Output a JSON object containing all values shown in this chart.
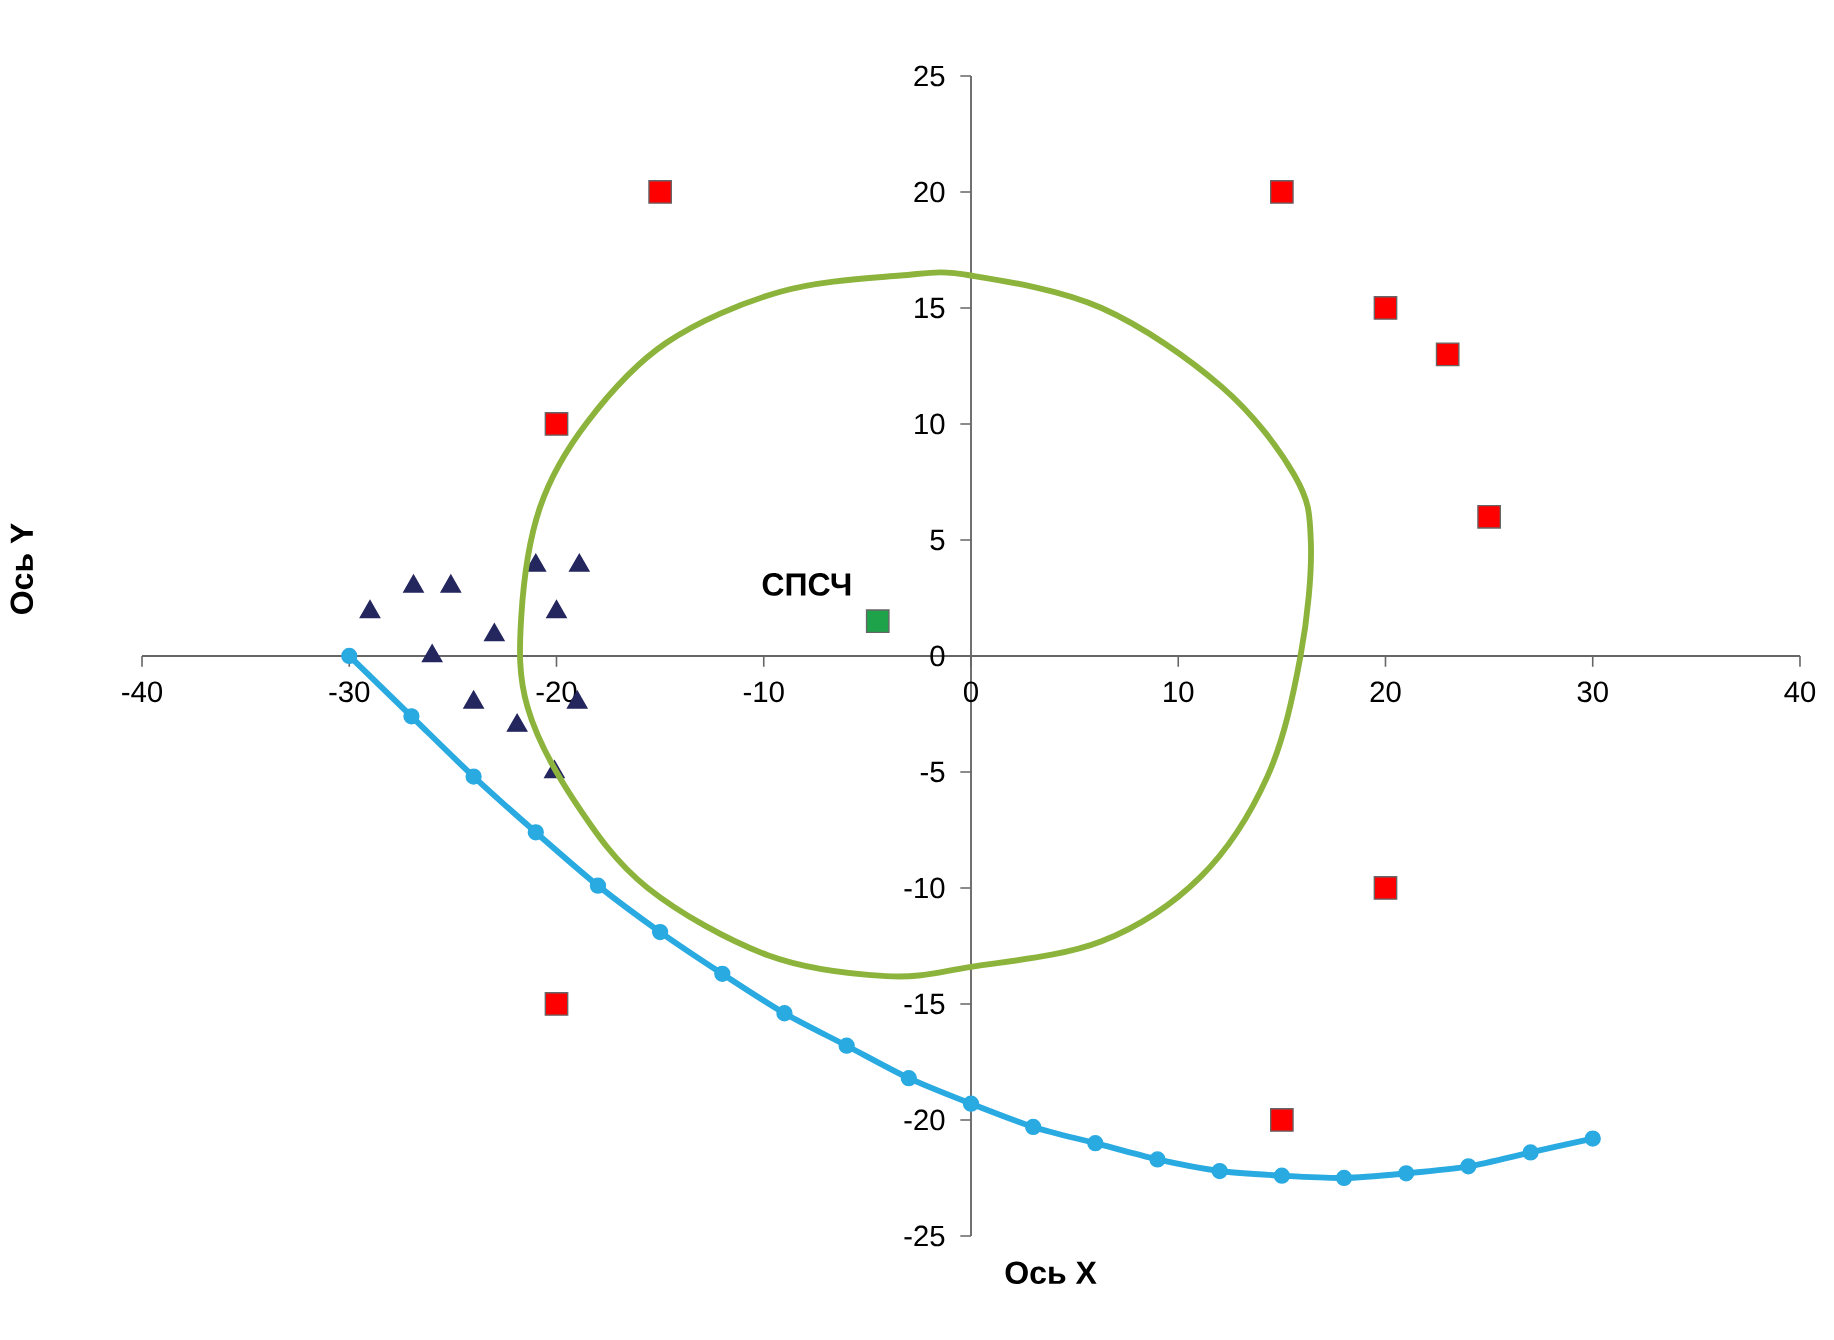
{
  "chart_data": {
    "type": "scatter",
    "xlabel": "Ось X",
    "ylabel": "Ось Y",
    "xlim": [
      -40,
      40
    ],
    "ylim": [
      -25,
      25
    ],
    "xticks": [
      -40,
      -30,
      -20,
      -10,
      0,
      10,
      20,
      30,
      40
    ],
    "yticks": [
      -25,
      -20,
      -15,
      -10,
      -5,
      0,
      5,
      10,
      15,
      20,
      25
    ],
    "grid": false,
    "annotations": [
      {
        "text": "СПСЧ",
        "x": -4.5,
        "y": 1.5
      }
    ],
    "series": [
      {
        "type": "scatter",
        "marker": "square",
        "color": "#ff0000",
        "x": [
          -15,
          15,
          20,
          23,
          25,
          -20,
          20,
          -20,
          15
        ],
        "values": [
          20,
          20,
          15,
          13,
          6,
          10,
          -10,
          -15,
          -20
        ]
      },
      {
        "type": "scatter",
        "marker": "triangle",
        "color": "#24265e",
        "x": [
          -29,
          -26.9,
          -25.1,
          -26,
          -23,
          -21,
          -18.9,
          -20,
          -24,
          -21.9,
          -19,
          -20.1
        ],
        "values": [
          1.9,
          3,
          3,
          0,
          0.9,
          3.9,
          3.9,
          1.9,
          -2,
          -3,
          -2,
          -5
        ]
      },
      {
        "type": "scatter",
        "marker": "square",
        "color": "#1ea34a",
        "x": [
          -4.5
        ],
        "values": [
          1.5
        ]
      },
      {
        "type": "line",
        "marker": "circle",
        "line_style": "solid",
        "color": "#29aae1",
        "x": [
          -30,
          -27,
          -24,
          -21,
          -18,
          -15,
          -12,
          -9,
          -6,
          -3,
          0,
          3,
          6,
          9,
          12,
          15,
          18,
          21,
          24,
          27,
          30
        ],
        "values": [
          0,
          -2.6,
          -5.2,
          -7.6,
          -9.9,
          -11.9,
          -13.7,
          -15.4,
          -16.8,
          -18.2,
          -19.3,
          -20.3,
          -21,
          -21.7,
          -22.2,
          -22.4,
          -22.5,
          -22.3,
          -22,
          -21.4,
          -20.8
        ]
      }
    ]
  }
}
